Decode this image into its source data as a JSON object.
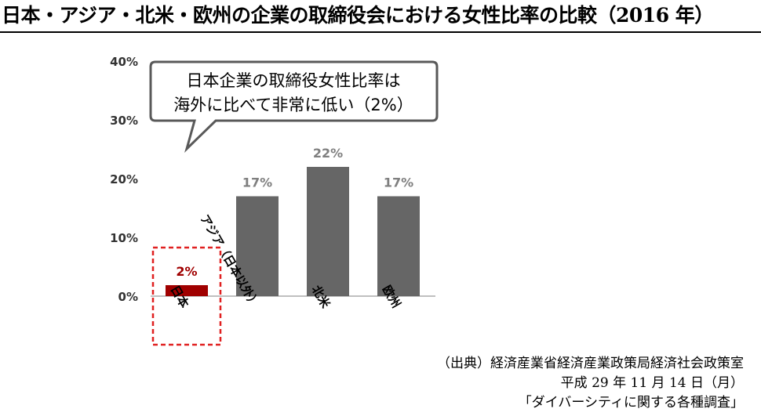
{
  "title": "日本・アジア・北米・欧州の企業の取締役会における女性比率の比較（2016 年）",
  "colors": {
    "bar": "#666666",
    "highlight": "#a00000",
    "highlight_border": "#e02020",
    "label": "#7f7f7f",
    "axis": "#bfbfbf",
    "text": "#333333"
  },
  "callout": {
    "line1": "日本企業の取締役女性比率は",
    "line2": "海外に比べて非常に低い（2%）"
  },
  "chart_data": {
    "type": "bar",
    "categories": [
      "日本",
      "アジア（日本以外）",
      "北米",
      "欧州"
    ],
    "values": [
      2,
      17,
      22,
      17
    ],
    "value_labels": [
      "2%",
      "17%",
      "22%",
      "17%"
    ],
    "yticks": [
      "0%",
      "10%",
      "20%",
      "30%",
      "40%"
    ],
    "ylim": [
      0,
      40
    ],
    "highlight_category": "日本",
    "grid": false
  },
  "source": {
    "line1": "（出典）経済産業省経済産業政策局経済社会政策室",
    "line2": "平成 29 年 11 月 14 日（月）",
    "line3": "「ダイバーシティに関する各種調査」"
  }
}
